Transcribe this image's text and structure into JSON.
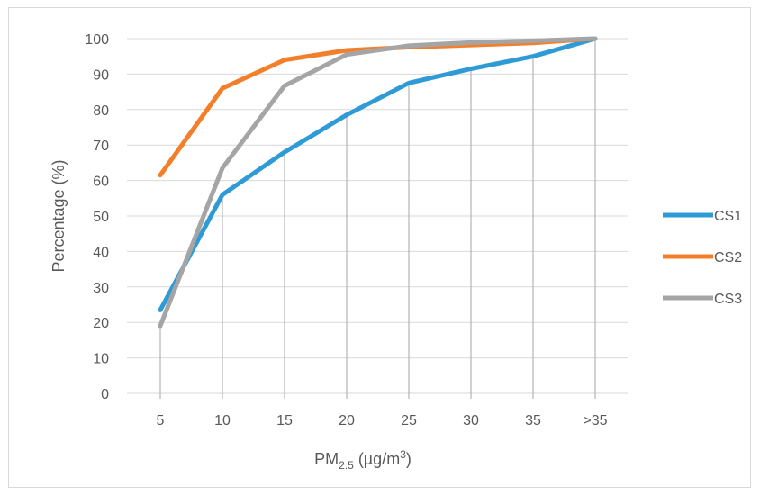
{
  "chart_data": {
    "type": "line",
    "title": "",
    "xlabel": "PM2.5 (µg/m3)",
    "xlabel_parts": {
      "base": "PM",
      "sub": "2.5",
      "unit_open": " (µg/m",
      "sup": "3",
      "unit_close": ")"
    },
    "ylabel": "Percentage (%)",
    "categories": [
      "5",
      "10",
      "15",
      "20",
      "25",
      "30",
      "35",
      ">35"
    ],
    "ylim": [
      0,
      100
    ],
    "yticks": [
      0,
      10,
      20,
      30,
      40,
      50,
      60,
      70,
      80,
      90,
      100
    ],
    "grid": {
      "horizontal": true,
      "vertical": true
    },
    "legend": "right",
    "series": [
      {
        "name": "CS1",
        "color": "#2E9BD6",
        "values": [
          23.5,
          56,
          68,
          78.5,
          87.5,
          91.5,
          95,
          100
        ]
      },
      {
        "name": "CS2",
        "color": "#F47F2A",
        "values": [
          61.5,
          86,
          94,
          96.7,
          97.6,
          98.2,
          98.8,
          100
        ]
      },
      {
        "name": "CS3",
        "color": "#A5A5A5",
        "values": [
          19,
          63.5,
          86.7,
          95.5,
          98,
          98.9,
          99.4,
          100
        ]
      }
    ]
  }
}
